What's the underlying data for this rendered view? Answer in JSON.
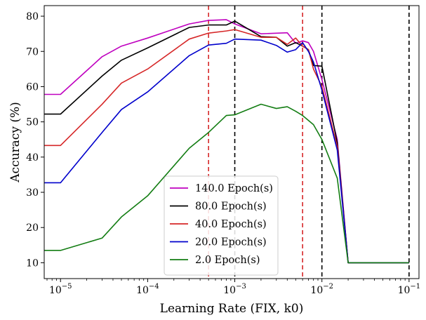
{
  "chart_data": {
    "type": "line",
    "xscale": "log",
    "xlabel": "Learning Rate (FIX, k0)",
    "ylabel": "Accuracy (%)",
    "xlim": [
      6.5e-06,
      0.13
    ],
    "ylim": [
      5.5,
      83
    ],
    "x_ticks": [
      {
        "value": 1e-05,
        "base": "10",
        "exp": "−5"
      },
      {
        "value": 0.0001,
        "base": "10",
        "exp": "−4"
      },
      {
        "value": 0.001,
        "base": "10",
        "exp": "−3"
      },
      {
        "value": 0.01,
        "base": "10",
        "exp": "−2"
      },
      {
        "value": 0.1,
        "base": "10",
        "exp": "−1"
      }
    ],
    "y_ticks": [
      "10",
      "20",
      "30",
      "40",
      "50",
      "60",
      "70",
      "80"
    ],
    "vlines": [
      {
        "x": 0.0005,
        "color": "#d62728"
      },
      {
        "x": 0.006,
        "color": "#d62728"
      },
      {
        "x": 0.001,
        "color": "#000000"
      },
      {
        "x": 0.01,
        "color": "#000000"
      },
      {
        "x": 0.1,
        "color": "#000000"
      }
    ],
    "legend_position": "lower-center",
    "series": [
      {
        "name": "140.0 Epoch(s)",
        "color": "#bf00bf",
        "points": [
          [
            6.5e-06,
            57.8
          ],
          [
            1e-05,
            57.8
          ],
          [
            3e-05,
            68.5
          ],
          [
            5e-05,
            71.5
          ],
          [
            0.0001,
            73.8
          ],
          [
            0.0003,
            77.8
          ],
          [
            0.0005,
            78.8
          ],
          [
            0.0008,
            79
          ],
          [
            0.001,
            77.8
          ],
          [
            0.002,
            75
          ],
          [
            0.004,
            75.3
          ],
          [
            0.005,
            72.3
          ],
          [
            0.006,
            73
          ],
          [
            0.007,
            72.5
          ],
          [
            0.008,
            70
          ],
          [
            0.01,
            62
          ],
          [
            0.015,
            45
          ],
          [
            0.02,
            10
          ],
          [
            0.05,
            10
          ],
          [
            0.1,
            10
          ]
        ]
      },
      {
        "name": "80.0 Epoch(s)",
        "color": "#000000",
        "points": [
          [
            6.5e-06,
            52.2
          ],
          [
            1e-05,
            52.2
          ],
          [
            3e-05,
            63
          ],
          [
            5e-05,
            67.5
          ],
          [
            0.0001,
            71
          ],
          [
            0.0003,
            76.8
          ],
          [
            0.0005,
            77.5
          ],
          [
            0.0008,
            77.5
          ],
          [
            0.001,
            78.6
          ],
          [
            0.002,
            74.2
          ],
          [
            0.003,
            74
          ],
          [
            0.004,
            71.5
          ],
          [
            0.005,
            72.5
          ],
          [
            0.006,
            71.5
          ],
          [
            0.007,
            70.5
          ],
          [
            0.008,
            66
          ],
          [
            0.01,
            65.8
          ],
          [
            0.015,
            44
          ],
          [
            0.02,
            10
          ],
          [
            0.05,
            10
          ],
          [
            0.1,
            10
          ]
        ]
      },
      {
        "name": "40.0 Epoch(s)",
        "color": "#d62728",
        "points": [
          [
            6.5e-06,
            43.3
          ],
          [
            1e-05,
            43.3
          ],
          [
            3e-05,
            55
          ],
          [
            5e-05,
            61
          ],
          [
            0.0001,
            65
          ],
          [
            0.0003,
            73.5
          ],
          [
            0.0005,
            75.2
          ],
          [
            0.0008,
            75.8
          ],
          [
            0.001,
            76.2
          ],
          [
            0.002,
            74
          ],
          [
            0.003,
            74
          ],
          [
            0.004,
            72
          ],
          [
            0.005,
            73.8
          ],
          [
            0.006,
            71.5
          ],
          [
            0.007,
            70.5
          ],
          [
            0.008,
            65
          ],
          [
            0.01,
            60
          ],
          [
            0.015,
            43
          ],
          [
            0.02,
            10
          ],
          [
            0.05,
            10
          ],
          [
            0.1,
            10
          ]
        ]
      },
      {
        "name": "20.0 Epoch(s)",
        "color": "#0000cc",
        "points": [
          [
            6.5e-06,
            32.7
          ],
          [
            1e-05,
            32.7
          ],
          [
            3e-05,
            47
          ],
          [
            5e-05,
            53.5
          ],
          [
            0.0001,
            58.5
          ],
          [
            0.0003,
            68.8
          ],
          [
            0.0005,
            71.8
          ],
          [
            0.0008,
            72.3
          ],
          [
            0.001,
            73.5
          ],
          [
            0.002,
            73.2
          ],
          [
            0.003,
            71.7
          ],
          [
            0.004,
            69.8
          ],
          [
            0.005,
            70.5
          ],
          [
            0.006,
            72.5
          ],
          [
            0.007,
            70
          ],
          [
            0.008,
            67
          ],
          [
            0.01,
            59
          ],
          [
            0.015,
            42
          ],
          [
            0.02,
            10
          ],
          [
            0.05,
            10
          ],
          [
            0.1,
            10
          ]
        ]
      },
      {
        "name": "2.0 Epoch(s)",
        "color": "#137d13",
        "points": [
          [
            6.5e-06,
            13.5
          ],
          [
            1e-05,
            13.5
          ],
          [
            3e-05,
            17
          ],
          [
            5e-05,
            23
          ],
          [
            0.0001,
            29
          ],
          [
            0.0003,
            42.5
          ],
          [
            0.0005,
            47
          ],
          [
            0.0008,
            51.8
          ],
          [
            0.001,
            52
          ],
          [
            0.002,
            55
          ],
          [
            0.003,
            53.8
          ],
          [
            0.004,
            54.3
          ],
          [
            0.005,
            53
          ],
          [
            0.006,
            51.8
          ],
          [
            0.008,
            49.2
          ],
          [
            0.01,
            45
          ],
          [
            0.015,
            34
          ],
          [
            0.02,
            10
          ],
          [
            0.05,
            10
          ],
          [
            0.1,
            10
          ]
        ]
      }
    ]
  }
}
